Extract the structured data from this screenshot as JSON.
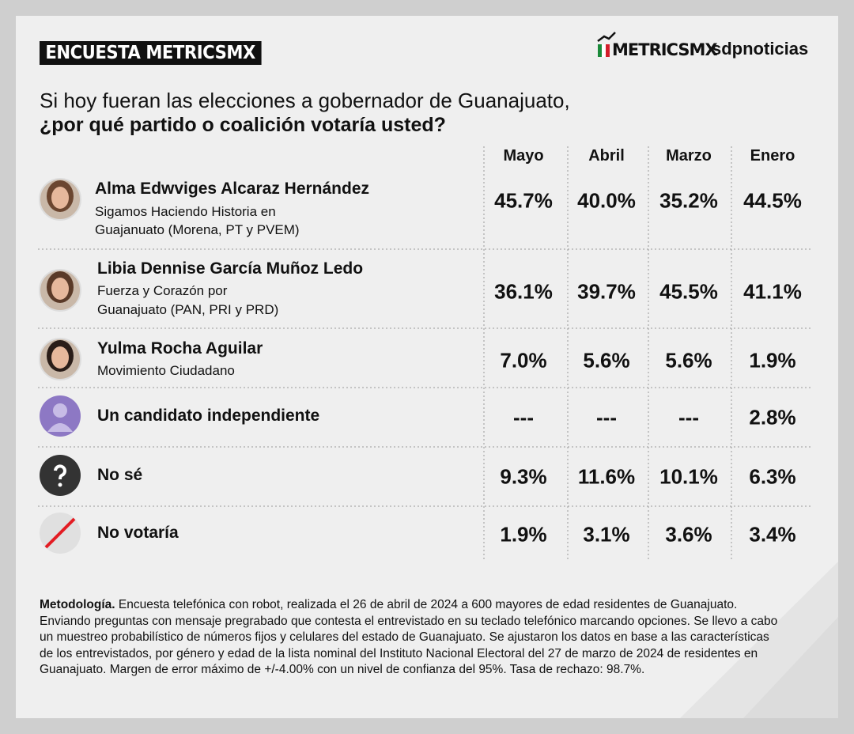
{
  "header": {
    "badge": "ENCUESTA METRICSMX",
    "logo_metrics": "METRICSMX",
    "logo_sdp": "sdpnoticias"
  },
  "question": {
    "line1": "Si hoy fueran las elecciones a gobernador de Guanajuato,",
    "line2": "¿por qué partido o coalición votaría usted?"
  },
  "table": {
    "columns": [
      "Mayo",
      "Abril",
      "Marzo",
      "Enero"
    ],
    "rows": [
      {
        "name": "Alma Edwviges Alcaraz Hernández",
        "party": [
          "Sigamos Haciendo Historia en",
          "Guajanuato (Morena, PT y PVEM)"
        ],
        "values": [
          "45.7%",
          "40.0%",
          "35.2%",
          "44.5%"
        ]
      },
      {
        "name": "Libia Dennise García Muñoz Ledo",
        "party": [
          "Fuerza y Corazón por",
          "Guanajuato (PAN, PRI y PRD)"
        ],
        "values": [
          "36.1%",
          "39.7%",
          "45.5%",
          "41.1%"
        ]
      },
      {
        "name": "Yulma Rocha Aguilar",
        "party": [
          "Movimiento Ciudadano"
        ],
        "values": [
          "7.0%",
          "5.6%",
          "5.6%",
          "1.9%"
        ]
      },
      {
        "name": "Un candidato independiente",
        "values": [
          "---",
          "---",
          "---",
          "2.8%"
        ]
      },
      {
        "name": "No sé",
        "values": [
          "9.3%",
          "11.6%",
          "10.1%",
          "6.3%"
        ]
      },
      {
        "name": "No votaría",
        "values": [
          "1.9%",
          "3.1%",
          "3.6%",
          "3.4%"
        ]
      }
    ]
  },
  "methodology": {
    "label": "Metodología.",
    "text": "Encuesta telefónica con robot, realizada el 26 de abril de 2024 a 600 mayores de edad residentes de Guanajuato. Enviando preguntas con mensaje pregrabado que contesta el entrevistado en su teclado telefónico marcando opciones. Se llevo a cabo un muestreo probabilístico de números fijos y celulares del estado de Guanajuato. Se ajustaron los datos en base a las características de los entrevistados, por género y edad de la lista nominal del Instituto Nacional Electoral del 27 de marzo de 2024 de residentes en Guanajuato. Margen de error máximo de +/-4.00% con un nivel de confianza del 95%. Tasa de rechazo: 98.7%."
  }
}
